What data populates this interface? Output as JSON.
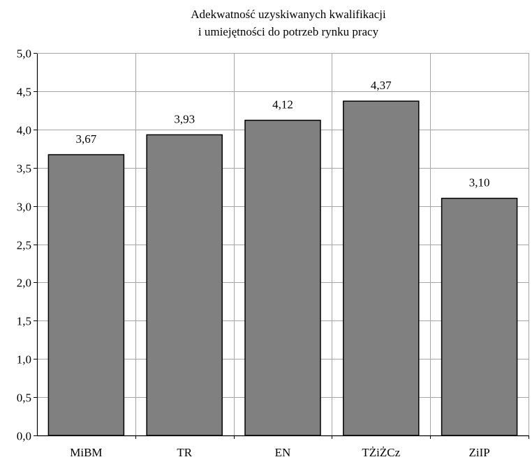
{
  "chart_data": {
    "type": "bar",
    "title_lines": [
      "Adekwatność uzyskiwanych kwalifikacji",
      "i umiejętności do potrzeb rynku pracy"
    ],
    "xlabel": "",
    "ylabel": "",
    "categories": [
      "MiBM",
      "TR",
      "EN",
      "TŻiŻCz",
      "ZiIP"
    ],
    "values": [
      3.67,
      3.93,
      4.12,
      4.37,
      3.1
    ],
    "value_labels": [
      "3,67",
      "3,93",
      "4,12",
      "4,37",
      "3,10"
    ],
    "ylim": [
      0,
      5
    ],
    "y_ticks": [
      0,
      0.5,
      1,
      1.5,
      2,
      2.5,
      3,
      3.5,
      4,
      4.5,
      5
    ],
    "y_tick_labels": [
      "0,0",
      "0,5",
      "1,0",
      "1,5",
      "2,0",
      "2,5",
      "3,0",
      "3,5",
      "4,0",
      "4,5",
      "5,0"
    ],
    "grid": true,
    "legend": "none",
    "bar_color": "#808080",
    "grid_color": "#a6a6a6",
    "axis_color": "#000000"
  }
}
